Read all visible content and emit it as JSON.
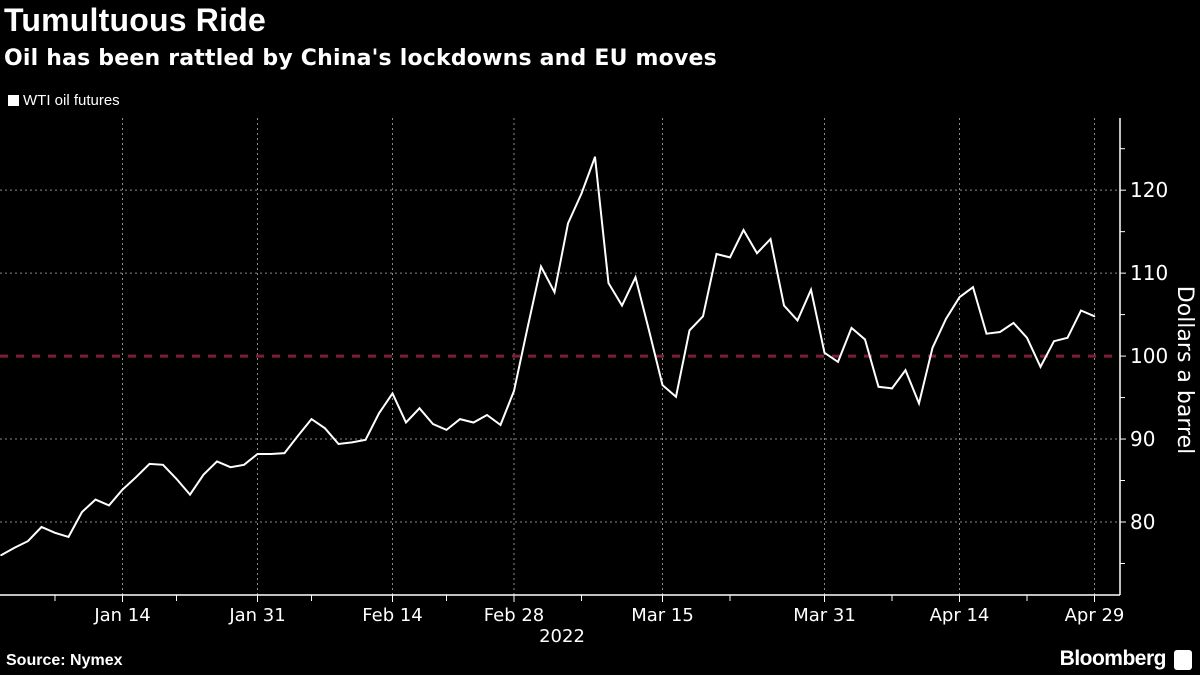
{
  "header": {
    "title": "Tumultuous Ride",
    "subtitle": "Oil has been rattled by China's lockdowns and EU moves"
  },
  "footer": {
    "source": "Source: Nymex",
    "brand": "Bloomberg"
  },
  "chart_data": {
    "type": "line",
    "title": "Tumultuous Ride",
    "subtitle": "Oil has been rattled by China's lockdowns and EU moves",
    "ylabel": "Dollars a barrel",
    "xlabel": "2022",
    "ylim": [
      71.2,
      128.7
    ],
    "y_ticks": [
      80,
      90,
      100,
      110,
      120
    ],
    "y_tick_labels": [
      "80",
      "90",
      "100",
      "110",
      "120"
    ],
    "x_tick_labels": [
      {
        "label": "Jan 14",
        "date": "2022-01-14"
      },
      {
        "label": "Jan 31",
        "date": "2022-01-31"
      },
      {
        "label": "Feb 14",
        "date": "2022-02-14"
      },
      {
        "label": "Feb 28",
        "date": "2022-02-28"
      },
      {
        "label": "Mar 15",
        "date": "2022-03-15"
      },
      {
        "label": "Mar 31",
        "date": "2022-03-31"
      },
      {
        "label": "Apr 14",
        "date": "2022-04-14"
      },
      {
        "label": "Apr 29",
        "date": "2022-04-29"
      }
    ],
    "year_label": "2022",
    "grid": true,
    "legend_position": "top-left",
    "reference_line": {
      "y": 100,
      "color": "#7a1f35",
      "style": "dashed"
    },
    "series": [
      {
        "name": "WTI oil futures",
        "color": "#ffffff",
        "x": [
          "2022-01-03",
          "2022-01-04",
          "2022-01-05",
          "2022-01-06",
          "2022-01-07",
          "2022-01-10",
          "2022-01-11",
          "2022-01-12",
          "2022-01-13",
          "2022-01-14",
          "2022-01-18",
          "2022-01-19",
          "2022-01-20",
          "2022-01-21",
          "2022-01-24",
          "2022-01-25",
          "2022-01-26",
          "2022-01-27",
          "2022-01-28",
          "2022-01-31",
          "2022-02-01",
          "2022-02-02",
          "2022-02-03",
          "2022-02-04",
          "2022-02-07",
          "2022-02-08",
          "2022-02-09",
          "2022-02-10",
          "2022-02-11",
          "2022-02-14",
          "2022-02-15",
          "2022-02-16",
          "2022-02-17",
          "2022-02-18",
          "2022-02-22",
          "2022-02-23",
          "2022-02-24",
          "2022-02-25",
          "2022-02-28",
          "2022-03-01",
          "2022-03-02",
          "2022-03-03",
          "2022-03-04",
          "2022-03-07",
          "2022-03-08",
          "2022-03-09",
          "2022-03-10",
          "2022-03-11",
          "2022-03-14",
          "2022-03-15",
          "2022-03-16",
          "2022-03-17",
          "2022-03-18",
          "2022-03-21",
          "2022-03-22",
          "2022-03-23",
          "2022-03-24",
          "2022-03-25",
          "2022-03-28",
          "2022-03-29",
          "2022-03-30",
          "2022-03-31",
          "2022-04-01",
          "2022-04-04",
          "2022-04-05",
          "2022-04-06",
          "2022-04-07",
          "2022-04-08",
          "2022-04-11",
          "2022-04-12",
          "2022-04-13",
          "2022-04-14",
          "2022-04-18",
          "2022-04-19",
          "2022-04-20",
          "2022-04-21",
          "2022-04-22",
          "2022-04-25",
          "2022-04-26",
          "2022-04-27",
          "2022-04-28",
          "2022-04-29"
        ],
        "values": [
          76.0,
          76.9,
          77.7,
          79.4,
          78.7,
          78.2,
          81.2,
          82.7,
          82.0,
          83.9,
          85.4,
          87.0,
          86.9,
          85.2,
          83.3,
          85.7,
          87.3,
          86.6,
          86.9,
          88.2,
          88.2,
          88.3,
          90.4,
          92.4,
          91.3,
          89.4,
          89.6,
          89.9,
          93.1,
          95.5,
          92.0,
          93.7,
          91.8,
          91.1,
          92.4,
          92.0,
          92.9,
          91.7,
          95.8,
          103.4,
          110.8,
          107.7,
          116.0,
          119.6,
          124.0,
          108.8,
          106.1,
          109.5,
          103.1,
          96.5,
          95.1,
          103.1,
          104.8,
          112.3,
          111.9,
          115.2,
          112.4,
          114.1,
          106.1,
          104.3,
          108.0,
          100.4,
          99.3,
          103.4,
          102.0,
          96.3,
          96.1,
          98.3,
          94.3,
          101.0,
          104.5,
          107.1,
          108.3,
          102.7,
          102.9,
          104.0,
          102.2,
          98.7,
          101.8,
          102.2,
          105.5,
          104.8
        ]
      }
    ]
  }
}
